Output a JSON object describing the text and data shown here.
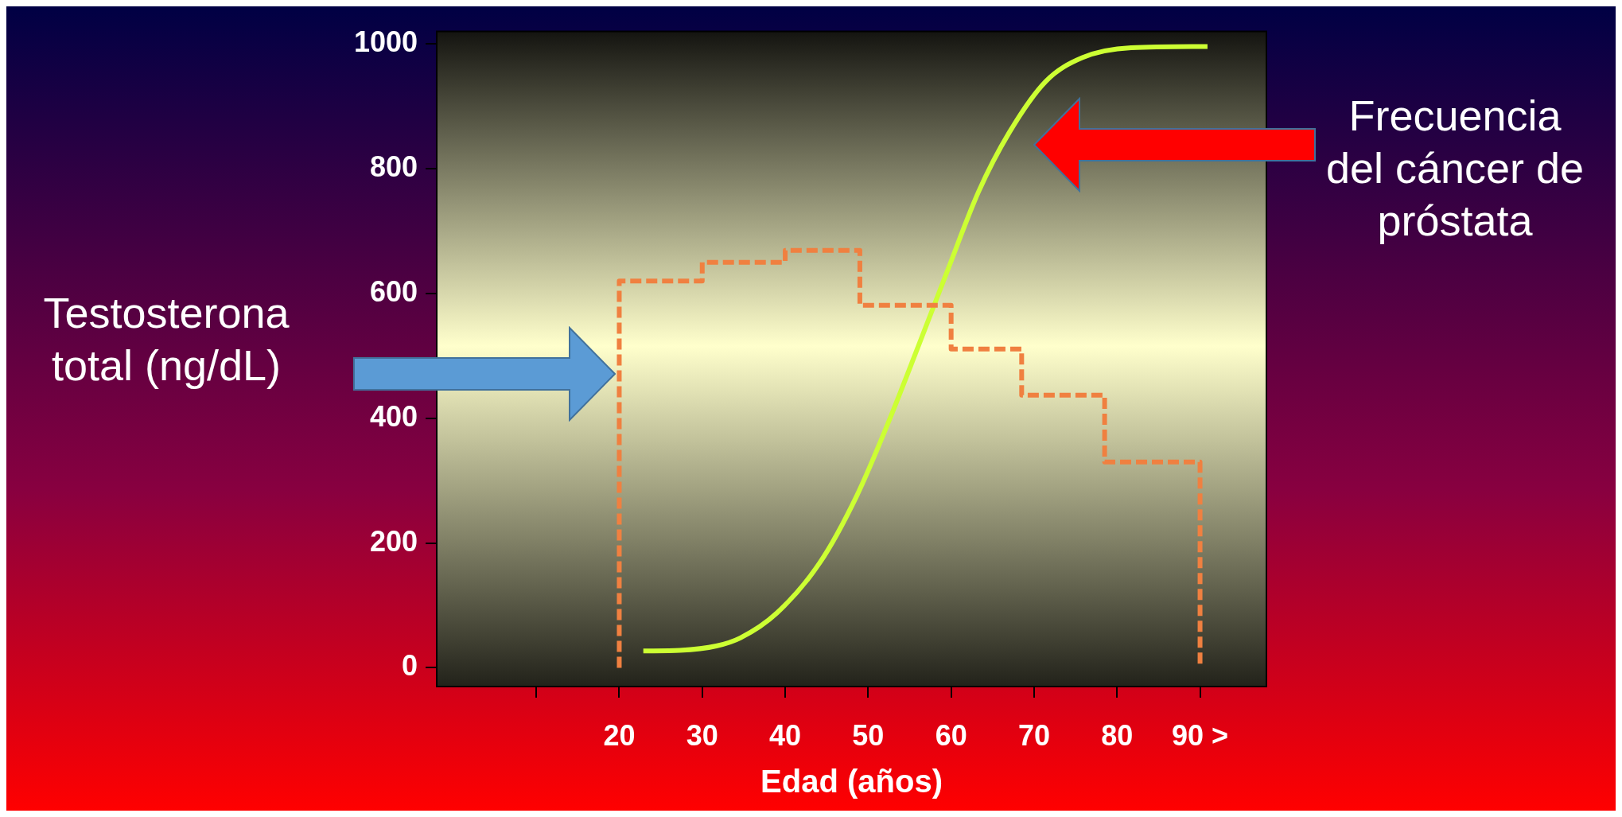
{
  "chart_data": {
    "type": "line",
    "xlabel": "Edad (años)",
    "xlim": [
      -2,
      98
    ],
    "ylim": [
      -30,
      1020
    ],
    "xticks": [
      {
        "value": 10,
        "label": null
      },
      20,
      30,
      40,
      50,
      60,
      70,
      80,
      {
        "value": 90,
        "label": "90 >"
      }
    ],
    "yticks": [
      0,
      200,
      400,
      600,
      800,
      1000
    ],
    "grid": false,
    "legend": false,
    "marker": "none",
    "series": [
      {
        "type": "step",
        "color": "#f08040",
        "line_style": "dashed",
        "x": [
          20,
          20,
          30,
          40,
          49,
          60,
          68.5,
          78.5,
          90,
          90
        ],
        "values": [
          0,
          620,
          650,
          669,
          581,
          511,
          437,
          330,
          330,
          0
        ]
      },
      {
        "color": "#ccff33",
        "line_style": "solid",
        "x": [
          22.9,
          27.3,
          31.7,
          34.6,
          39.0,
          44.2,
          48.6,
          52.3,
          56.0,
          59.6,
          63.3,
          67.0,
          71.4,
          75.8,
          81.7,
          90.9
        ],
        "values": [
          27,
          28,
          35,
          48,
          88,
          169,
          275,
          389,
          514,
          638,
          763,
          858,
          940,
          978,
          994,
          996
        ]
      }
    ],
    "annotations": [
      "Testosterona total (ng/dL)",
      "Frecuencia del cáncer de próstata"
    ]
  }
}
